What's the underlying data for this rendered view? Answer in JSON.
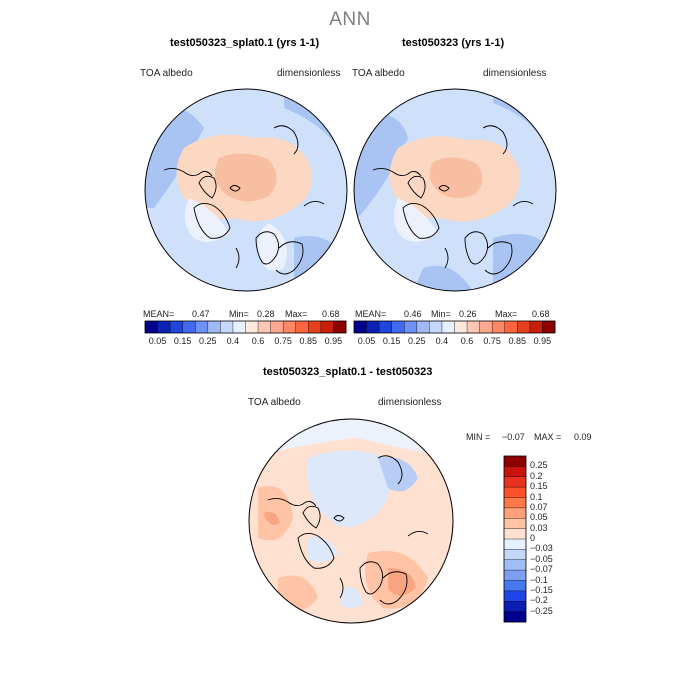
{
  "title": "ANN",
  "panels": [
    {
      "title": "test050323_splat0.1 (yrs 1-1)",
      "variable": "TOA albedo",
      "units": "dimensionless",
      "stats": {
        "mean_label": "MEAN=",
        "mean": "0.47",
        "min_label": "Min=",
        "min": "0.28",
        "max_label": "Max=",
        "max": "0.68"
      }
    },
    {
      "title": "test050323 (yrs 1-1)",
      "variable": "TOA albedo",
      "units": "dimensionless",
      "stats": {
        "mean_label": "MEAN=",
        "mean": "0.46",
        "min_label": "Min=",
        "min": "0.26",
        "max_label": "Max=",
        "max": "0.68"
      }
    }
  ],
  "colorbar_top": {
    "ticks": [
      "0.05",
      "0.15",
      "0.25",
      "0.4",
      "0.6",
      "0.75",
      "0.85",
      "0.95"
    ],
    "colors": [
      "#00008c",
      "#0a21b4",
      "#1e46dc",
      "#4169f0",
      "#6e91f5",
      "#a0b9f5",
      "#c8d7fa",
      "#e6f0ff",
      "#ffe8dc",
      "#ffc8b4",
      "#ffa890",
      "#ff8764",
      "#ff6440",
      "#e6411e",
      "#c81e0a",
      "#8c0000"
    ]
  },
  "diff_panel": {
    "title": "test050323_splat0.1 - test050323",
    "variable": "TOA albedo",
    "units": "dimensionless",
    "min_label": "MIN =",
    "min": "−0.07",
    "max_label": "MAX =",
    "max": "0.09"
  },
  "colorbar_diff": {
    "ticks": [
      "0.25",
      "0.2",
      "0.15",
      "0.1",
      "0.07",
      "0.05",
      "0.03",
      "0",
      "−0.03",
      "−0.05",
      "−0.07",
      "−0.1",
      "−0.15",
      "−0.2",
      "−0.25"
    ],
    "colors": [
      "#8c0000",
      "#c8140a",
      "#e6321e",
      "#ff5028",
      "#ff7846",
      "#ffa07a",
      "#ffc3a5",
      "#ffe1d2",
      "#e6f0ff",
      "#c3d7fa",
      "#a0bef5",
      "#7d9ff0",
      "#4678f0",
      "#1e46e6",
      "#0a1eb4",
      "#00008c"
    ]
  },
  "map_colors": {
    "ocean_light": "#cfe0fa",
    "ocean_mid": "#a9c4f3",
    "land_warm": "#fcd7c2",
    "land_warmer": "#f8bea1",
    "neutral": "#ecf1fb",
    "diff_pos1": "#ffe1d2",
    "diff_pos2": "#ffc3a5",
    "diff_pos3": "#f9a582",
    "diff_neg1": "#dde8fb",
    "diff_neg2": "#b8cdf5"
  }
}
